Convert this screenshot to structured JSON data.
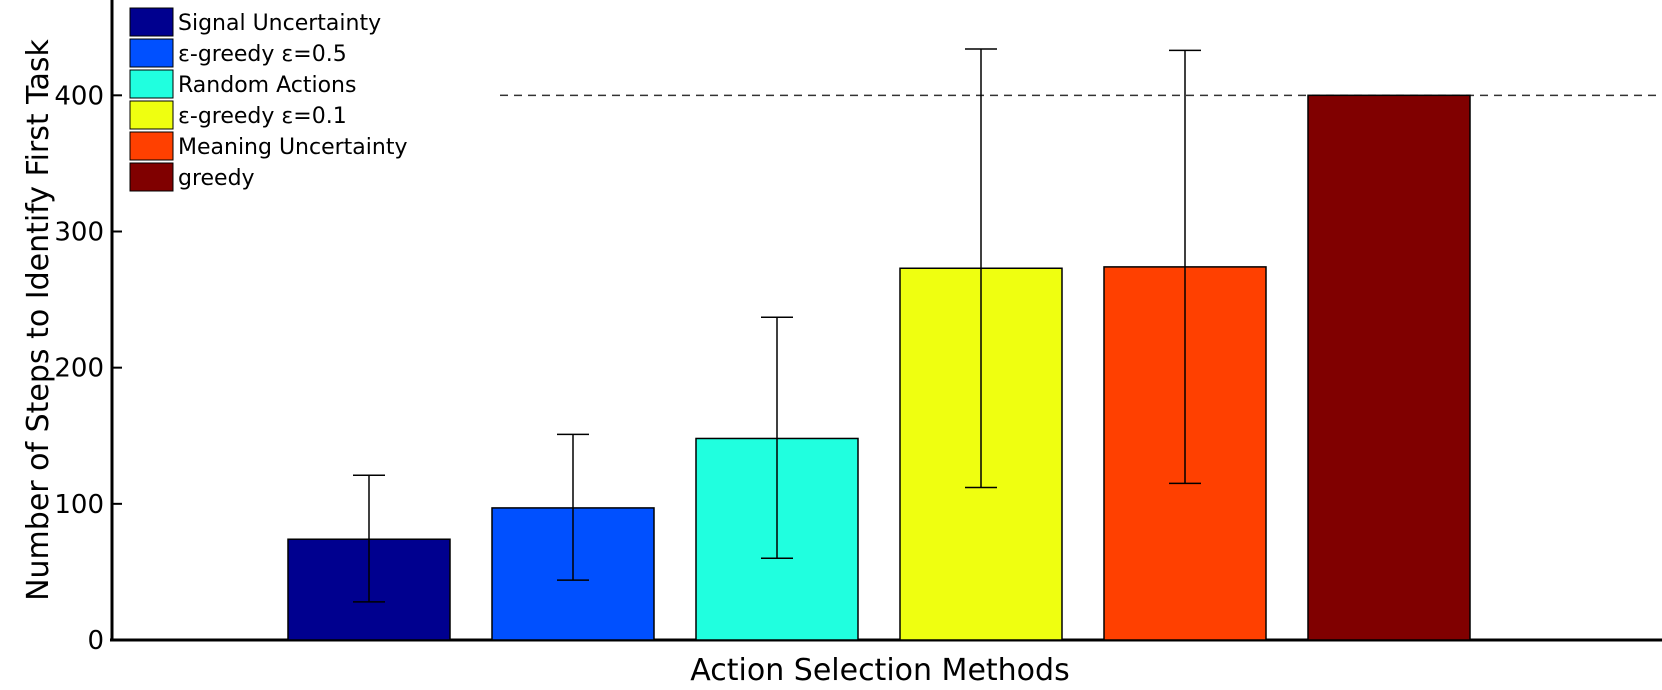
{
  "chart_data": {
    "type": "bar",
    "xlabel": "Action Selection Methods",
    "ylabel": "Number of Steps to Identify First Task",
    "ylim": [
      0,
      470
    ],
    "yticks": [
      0,
      100,
      200,
      300,
      400
    ],
    "grid": false,
    "legend_position": "top-left",
    "reference_line": {
      "y": 400,
      "style": "dashed"
    },
    "series": [
      {
        "name": "Signal Uncertainty",
        "value": 74,
        "err_low": 28,
        "err_high": 121,
        "color": "#00008f"
      },
      {
        "name": "ε-greedy ε=0.5",
        "value": 97,
        "err_low": 44,
        "err_high": 151,
        "color": "#0050ff"
      },
      {
        "name": "Random Actions",
        "value": 148,
        "err_low": 60,
        "err_high": 237,
        "color": "#20ffdf"
      },
      {
        "name": "ε-greedy ε=0.1",
        "value": 273,
        "err_low": 112,
        "err_high": 434,
        "color": "#efff10"
      },
      {
        "name": "Meaning Uncertainty",
        "value": 274,
        "err_low": 115,
        "err_high": 433,
        "color": "#ff4000"
      },
      {
        "name": "greedy",
        "value": 400,
        "err_low": 400,
        "err_high": 400,
        "color": "#800000"
      }
    ]
  }
}
